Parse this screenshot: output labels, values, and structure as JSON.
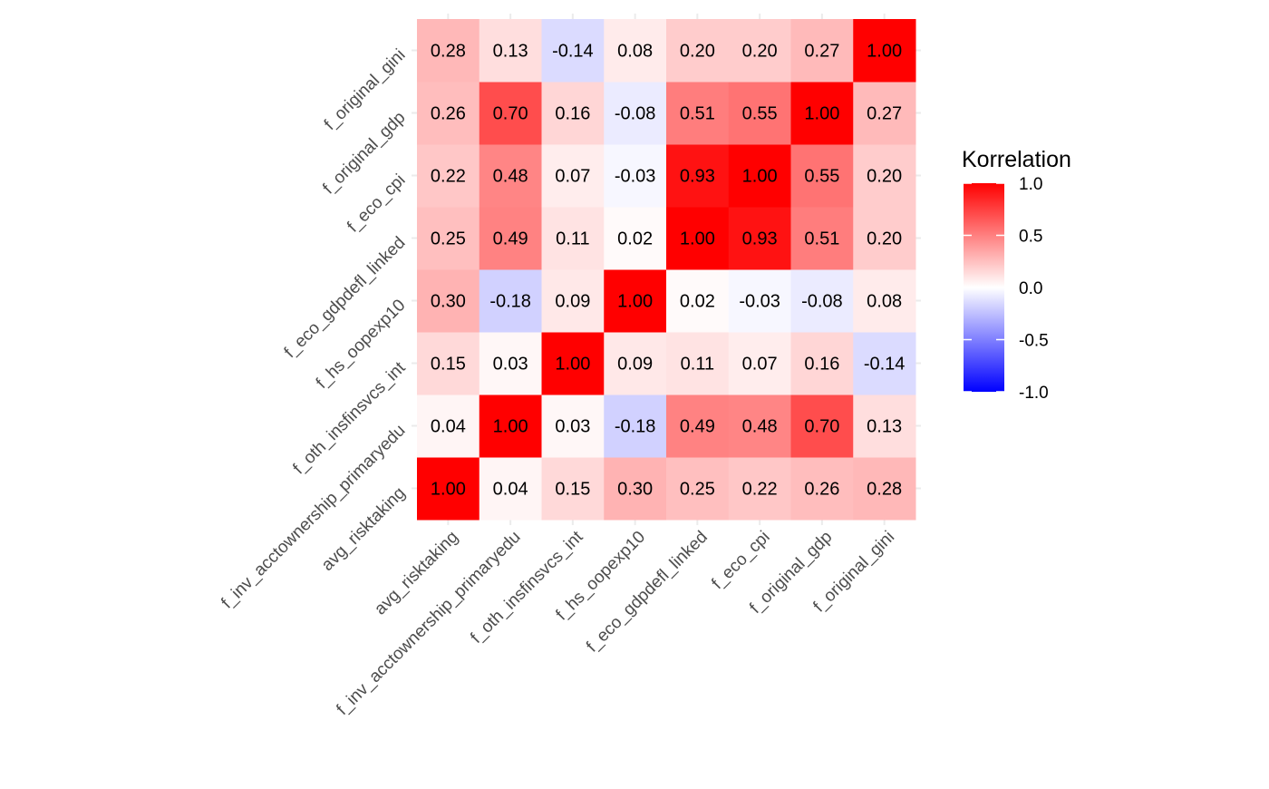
{
  "chart_data": {
    "type": "heatmap",
    "variables": [
      "avg_risktaking",
      "f_inv_acctownership_primaryedu",
      "f_oth_insfinsvcs_int",
      "f_hs_oopexp10",
      "f_eco_gdpdefl_linked",
      "f_eco_cpi",
      "f_original_gdp",
      "f_original_gini"
    ],
    "values": [
      [
        1.0,
        0.04,
        0.15,
        0.3,
        0.25,
        0.22,
        0.26,
        0.28
      ],
      [
        0.04,
        1.0,
        0.03,
        -0.18,
        0.49,
        0.48,
        0.7,
        0.13
      ],
      [
        0.15,
        0.03,
        1.0,
        0.09,
        0.11,
        0.07,
        0.16,
        -0.14
      ],
      [
        0.3,
        -0.18,
        0.09,
        1.0,
        0.02,
        -0.03,
        -0.08,
        0.08
      ],
      [
        0.25,
        0.49,
        0.11,
        0.02,
        1.0,
        0.93,
        0.51,
        0.2
      ],
      [
        0.22,
        0.48,
        0.07,
        -0.03,
        0.93,
        1.0,
        0.55,
        0.2
      ],
      [
        0.26,
        0.7,
        0.16,
        -0.08,
        0.51,
        0.55,
        1.0,
        0.27
      ],
      [
        0.28,
        0.13,
        -0.14,
        0.08,
        0.2,
        0.2,
        0.27,
        1.0
      ]
    ],
    "value_labels": [
      [
        "1.00",
        "0.04",
        "0.15",
        "0.30",
        "0.25",
        "0.22",
        "0.26",
        "0.28"
      ],
      [
        "0.04",
        "1.00",
        "0.03",
        "-0.18",
        "0.49",
        "0.48",
        "0.70",
        "0.13"
      ],
      [
        "0.15",
        "0.03",
        "1.00",
        "0.09",
        "0.11",
        "0.07",
        "0.16",
        "-0.14"
      ],
      [
        "0.30",
        "-0.18",
        "0.09",
        "1.00",
        "0.02",
        "-0.03",
        "-0.08",
        "0.08"
      ],
      [
        "0.25",
        "0.49",
        "0.11",
        "0.02",
        "1.00",
        "0.93",
        "0.51",
        "0.20"
      ],
      [
        "0.22",
        "0.48",
        "0.07",
        "-0.03",
        "0.93",
        "1.00",
        "0.55",
        "0.20"
      ],
      [
        "0.26",
        "0.70",
        "0.16",
        "-0.08",
        "0.51",
        "0.55",
        "1.00",
        "0.27"
      ],
      [
        "0.28",
        "0.13",
        "-0.14",
        "0.08",
        "0.20",
        "0.20",
        "0.27",
        "1.00"
      ]
    ],
    "title": "",
    "xlabel": "",
    "ylabel": "",
    "legend": {
      "title": "Korrelation",
      "position": "right",
      "ticks": [
        1.0,
        0.5,
        0.0,
        -0.5,
        -1.0
      ],
      "tick_labels": [
        "1.0",
        "0.5",
        "0.0",
        "-0.5",
        "-1.0"
      ],
      "limits": [
        -1,
        1
      ]
    },
    "colors": {
      "low": "#0000ff",
      "mid": "#ffffff",
      "high": "#ff0000"
    },
    "grid": true
  }
}
